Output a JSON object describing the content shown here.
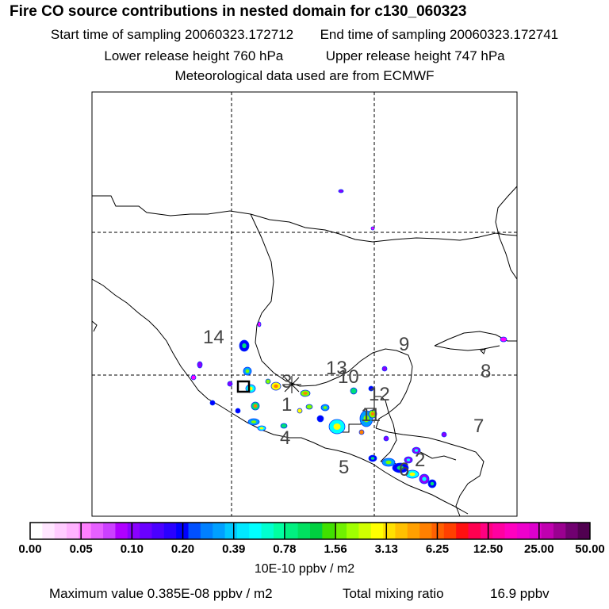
{
  "header": {
    "title": "Fire CO source contributions in nested domain for c130_060323",
    "start_time": "Start time of sampling 20060323.172712",
    "end_time": "End time of sampling 20060323.172741",
    "lower_release": "Lower release height  760 hPa",
    "upper_release": "Upper release height  747 hPa",
    "met_data": "Meteorological data used are from ECMWF"
  },
  "map": {
    "labels": [
      "14",
      "13",
      "10",
      "9",
      "8",
      "3",
      "1",
      "12",
      "11",
      "4",
      "5",
      "2",
      "6",
      "7"
    ],
    "marker": "release-point-square",
    "plume_colors": [
      "#ff00ff",
      "#8a00ff",
      "#0000ff",
      "#00a0ff",
      "#00ffff",
      "#00e07a",
      "#7cff00",
      "#ffff00",
      "#ff8000"
    ]
  },
  "colorbar": {
    "ticks": [
      "0.00",
      "0.05",
      "0.10",
      "0.20",
      "0.39",
      "0.78",
      "1.56",
      "3.13",
      "6.25",
      "12.50",
      "25.00",
      "50.00"
    ],
    "colors": [
      "#ffffff",
      "#ffe6ff",
      "#ffccff",
      "#ffb3ff",
      "#ff80ff",
      "#e660ff",
      "#cc40ff",
      "#b000ff",
      "#8a00ff",
      "#6a00ff",
      "#4a00ff",
      "#2a00ff",
      "#0000ff",
      "#0050ff",
      "#0080ff",
      "#00a0ff",
      "#00c8ff",
      "#00e8ff",
      "#00ffff",
      "#00ffd0",
      "#00ffa0",
      "#00f080",
      "#00e060",
      "#00d040",
      "#40e000",
      "#70f000",
      "#a0ff00",
      "#d0ff00",
      "#ffff00",
      "#ffe000",
      "#ffc000",
      "#ffa000",
      "#ff8000",
      "#ff6000",
      "#ff4000",
      "#ff1010",
      "#ff0050",
      "#ff0080",
      "#ff00a0",
      "#ff00c0",
      "#ee00cc",
      "#dd00cc",
      "#c000b0",
      "#9a0090",
      "#700070",
      "#500050"
    ],
    "units": "10E-10 ppbv / m2"
  },
  "footer": {
    "max_value": "Maximum value  0.385E-08 ppbv / m2",
    "total_mixing": "Total mixing ratio",
    "total_mixing_value": "16.9 ppbv"
  }
}
